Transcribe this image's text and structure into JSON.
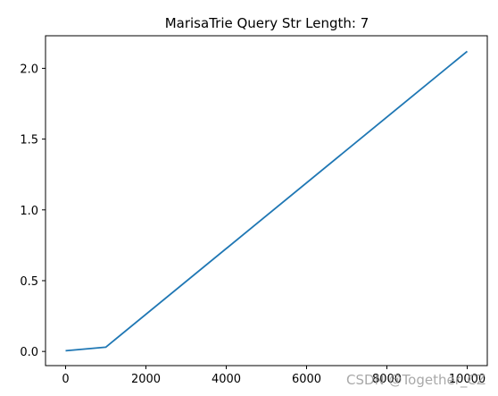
{
  "chart_data": {
    "type": "line",
    "title": "MarisaTrie Query Str Length: 7",
    "xlabel": "",
    "ylabel": "",
    "xlim": [
      -500,
      10500
    ],
    "ylim": [
      -0.1,
      2.23
    ],
    "x_ticks": [
      0,
      2000,
      4000,
      6000,
      8000,
      10000
    ],
    "y_ticks": [
      0.0,
      0.5,
      1.0,
      1.5,
      2.0
    ],
    "x_tick_labels": [
      "0",
      "2000",
      "4000",
      "6000",
      "8000",
      "10000"
    ],
    "y_tick_labels": [
      "0.0",
      "0.5",
      "1.0",
      "1.5",
      "2.0"
    ],
    "grid": false,
    "series": [
      {
        "color": "#1f77b4",
        "x": [
          0,
          1000,
          10000
        ],
        "y": [
          0.005,
          0.03,
          2.12
        ]
      }
    ]
  },
  "watermark": "CSDN @Together_CZ"
}
